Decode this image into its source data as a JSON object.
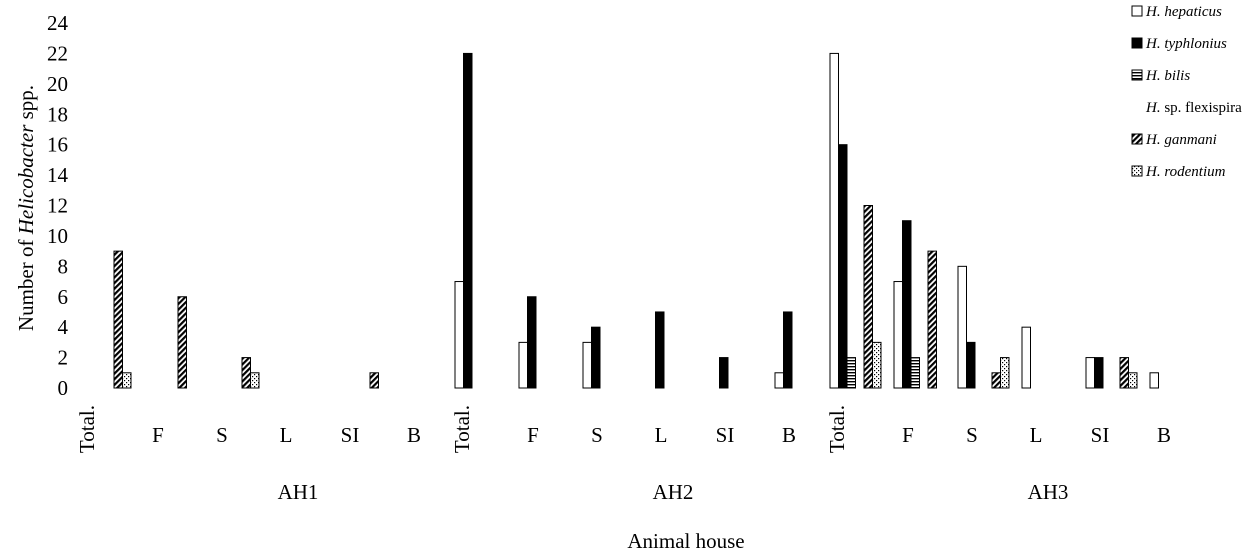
{
  "chart_data": {
    "type": "bar",
    "title": "",
    "ylabel_parts": [
      "Number of ",
      "Helicobacter",
      " spp."
    ],
    "xlabel": "Animal house",
    "ylim": [
      0,
      24
    ],
    "yticks": [
      "0",
      "2",
      "4",
      "6",
      "8",
      "10",
      "12",
      "14",
      "16",
      "18",
      "20",
      "22",
      "24"
    ],
    "legend_position": "top-right",
    "groups": [
      "AH1",
      "AH2",
      "AH3"
    ],
    "categories": [
      "Total.",
      "F",
      "S",
      "L",
      "SI",
      "B"
    ],
    "series": [
      {
        "name": "H. hepaticus",
        "prefix": "H. ",
        "species": "hepaticus",
        "suffix": "",
        "pattern": "white",
        "values": [
          [
            0,
            0,
            0,
            0,
            0,
            0
          ],
          [
            7,
            3,
            3,
            0,
            0,
            1
          ],
          [
            22,
            7,
            8,
            4,
            2,
            1
          ]
        ]
      },
      {
        "name": "H. typhlonius",
        "prefix": "H. ",
        "species": "typhlonius",
        "suffix": "",
        "pattern": "black",
        "values": [
          [
            0,
            0,
            0,
            0,
            0,
            0
          ],
          [
            22,
            6,
            4,
            5,
            2,
            5
          ],
          [
            16,
            11,
            3,
            0,
            2,
            0
          ]
        ]
      },
      {
        "name": "H. bilis",
        "prefix": "H. ",
        "species": "bilis",
        "suffix": "",
        "pattern": "hlines",
        "values": [
          [
            0,
            0,
            0,
            0,
            0,
            0
          ],
          [
            0,
            0,
            0,
            0,
            0,
            0
          ],
          [
            2,
            2,
            0,
            0,
            0,
            0
          ]
        ]
      },
      {
        "name": "H. sp. flexispira",
        "prefix": "H. ",
        "species": "",
        "suffix": "sp. flexispira",
        "pattern": "none",
        "values": [
          [
            0,
            0,
            0,
            0,
            0,
            0
          ],
          [
            0,
            0,
            0,
            0,
            0,
            0
          ],
          [
            0,
            0,
            0,
            0,
            0,
            0
          ]
        ]
      },
      {
        "name": "H. ganmani",
        "prefix": "H. ",
        "species": "ganmani",
        "suffix": "",
        "pattern": "diag",
        "values": [
          [
            9,
            6,
            2,
            0,
            1,
            0
          ],
          [
            0,
            0,
            0,
            0,
            0,
            0
          ],
          [
            12,
            9,
            1,
            0,
            2,
            0
          ]
        ]
      },
      {
        "name": "H. rodentium",
        "prefix": "H. ",
        "species": "rodentium",
        "suffix": "",
        "pattern": "dots",
        "values": [
          [
            1,
            0,
            1,
            0,
            0,
            0
          ],
          [
            0,
            0,
            0,
            0,
            0,
            0
          ],
          [
            3,
            0,
            2,
            0,
            1,
            0
          ]
        ]
      }
    ]
  }
}
